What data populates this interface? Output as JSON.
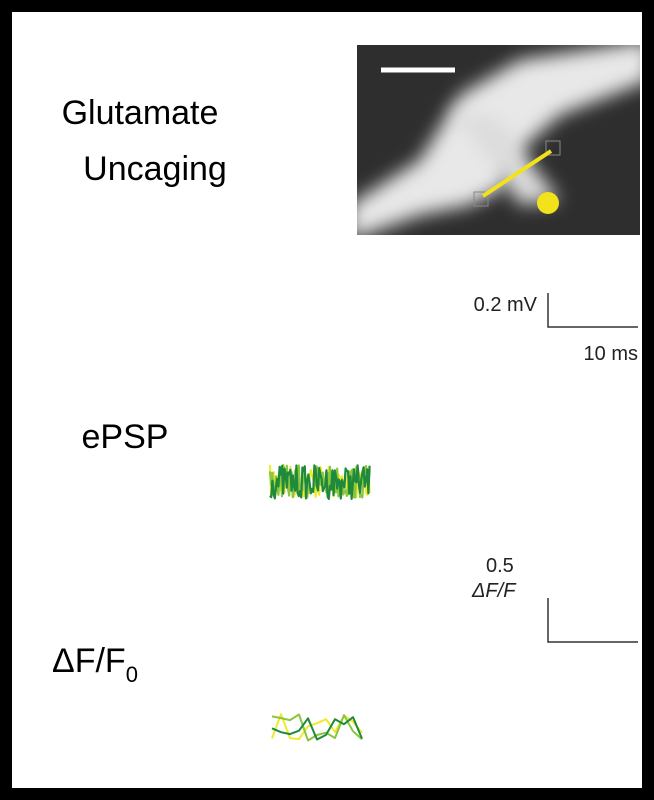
{
  "panel": {
    "stimulus_label": [
      "Glutamate",
      "Uncaging"
    ],
    "epsp_label": "ePSP",
    "dff_label": {
      "main": "ΔF/F",
      "sub": "0"
    }
  },
  "epsp_scale": {
    "y": "0.2 mV",
    "x": "10 ms"
  },
  "dff_scale": {
    "value": "0.5",
    "unit": "ΔF/F"
  }
}
